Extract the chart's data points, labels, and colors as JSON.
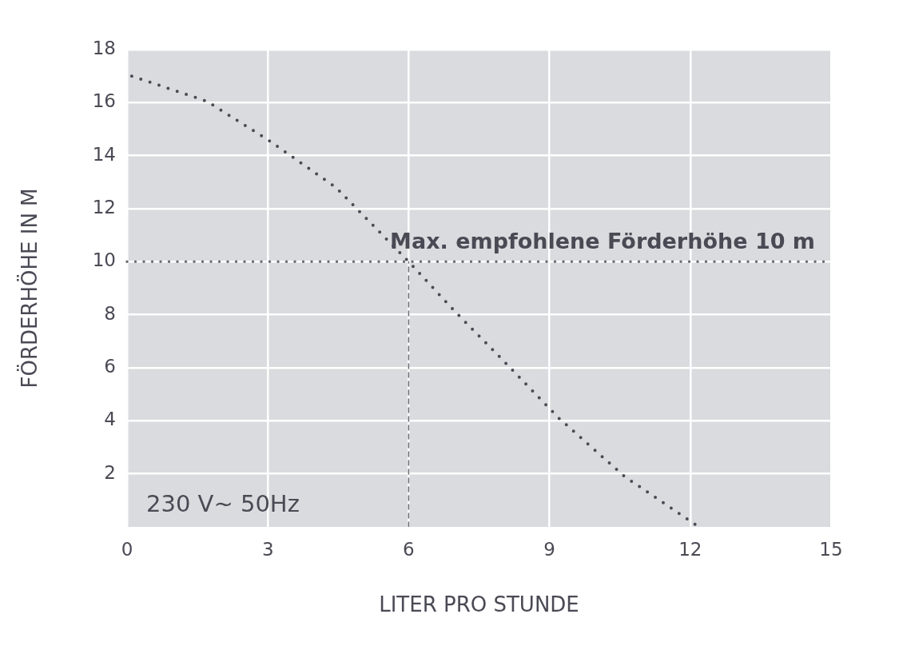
{
  "chart_data": {
    "type": "line",
    "xlabel": "LITER PRO STUNDE",
    "ylabel": "FÖRDERHÖHE IN M",
    "xlim": [
      0,
      15
    ],
    "xticks": [
      0,
      3,
      6,
      9,
      12,
      15
    ],
    "ylim": [
      0,
      18
    ],
    "yticks": [
      2,
      4,
      6,
      8,
      10,
      12,
      14,
      16,
      18
    ],
    "grid": true,
    "legend": false,
    "marker": "none",
    "series": [
      {
        "color": "#4a4a55",
        "line_style": "dotted",
        "x": [
          0.1,
          1.7,
          3,
          4.45,
          6,
          7,
          8,
          9.2,
          10.6,
          12.1
        ],
        "values": [
          17,
          16.05,
          14.6,
          12.8,
          10,
          8.1,
          6.3,
          4.1,
          1.9,
          0.1
        ]
      },
      {
        "color": "#6a6a72",
        "line_style": "dashed",
        "x": [
          6,
          6
        ],
        "values": [
          0,
          10
        ]
      }
    ],
    "ref_lines": [
      {
        "axis": "y",
        "value": 10,
        "label": "Max. empfohlene Förderhöhe 10 m",
        "color": "#6a6a72",
        "line_style": "dotted"
      }
    ],
    "annotations": [
      "230 V~ 50Hz"
    ]
  }
}
